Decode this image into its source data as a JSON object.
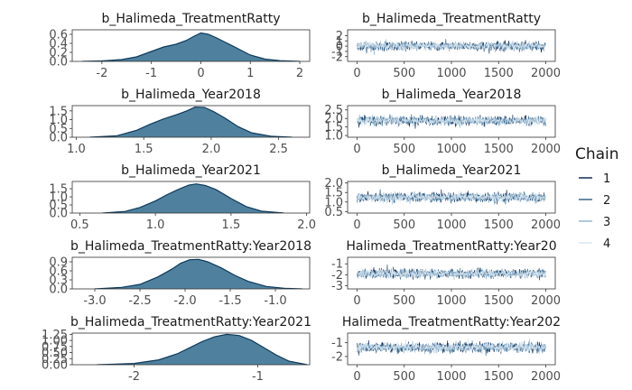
{
  "chart_data": [
    {
      "type": "area",
      "title": "b_Halimeda_TreatmentRatty",
      "xlim": [
        -2.6,
        2.2
      ],
      "ylim": [
        0,
        0.7
      ],
      "x_ticks": [
        -2,
        -1,
        0,
        1,
        2
      ],
      "x_tick_labels": [
        "-2",
        "-1",
        "0",
        "1",
        "2"
      ],
      "y_ticks": [
        0,
        0.2,
        0.4,
        0.6
      ],
      "y_tick_labels": [
        "0.0",
        "0.2",
        "0.4",
        "0.6"
      ],
      "density_x": [
        -2.4,
        -2.0,
        -1.6,
        -1.3,
        -1.0,
        -0.75,
        -0.5,
        -0.3,
        -0.15,
        0.0,
        0.15,
        0.3,
        0.5,
        0.7,
        1.0,
        1.3,
        1.6,
        2.0
      ],
      "density_y": [
        0.0,
        0.01,
        0.04,
        0.1,
        0.22,
        0.32,
        0.38,
        0.46,
        0.55,
        0.63,
        0.6,
        0.53,
        0.42,
        0.31,
        0.14,
        0.05,
        0.015,
        0.0
      ]
    },
    {
      "type": "line",
      "title": "b_Halimeda_TreatmentRatty",
      "xlim": [
        -100,
        2100
      ],
      "ylim": [
        -2.9,
        3.1
      ],
      "x_ticks": [
        0,
        500,
        1000,
        1500,
        2000
      ],
      "x_tick_labels": [
        "0",
        "500",
        "1000",
        "1500",
        "2000"
      ],
      "y_ticks": [
        -2,
        -1,
        0,
        1,
        2
      ],
      "y_tick_labels": [
        "-2",
        "-1",
        "0",
        "1",
        "2"
      ],
      "iterations": 2000,
      "trace_center": 0,
      "trace_spread": 0.75,
      "series": [
        "1",
        "2",
        "3",
        "4"
      ]
    },
    {
      "type": "area",
      "title": "b_Halimeda_Year2018",
      "xlim": [
        0.97,
        2.73
      ],
      "ylim": [
        0,
        1.8
      ],
      "x_ticks": [
        1.0,
        1.5,
        2.0,
        2.5
      ],
      "x_tick_labels": [
        "1.0",
        "1.5",
        "2.0",
        "2.5"
      ],
      "y_ticks": [
        0,
        0.5,
        1.0,
        1.5
      ],
      "y_tick_labels": [
        "0.0",
        "0.5",
        "1.0",
        "1.5"
      ],
      "density_x": [
        1.1,
        1.3,
        1.45,
        1.55,
        1.65,
        1.75,
        1.82,
        1.88,
        1.95,
        2.02,
        2.1,
        2.2,
        2.3,
        2.45,
        2.6
      ],
      "density_y": [
        0.0,
        0.08,
        0.4,
        0.75,
        1.05,
        1.3,
        1.5,
        1.72,
        1.7,
        1.45,
        1.1,
        0.6,
        0.25,
        0.05,
        0.0
      ]
    },
    {
      "type": "line",
      "title": "b_Halimeda_Year2018",
      "xlim": [
        -100,
        2100
      ],
      "ylim": [
        0.9,
        2.75
      ],
      "x_ticks": [
        0,
        500,
        1000,
        1500,
        2000
      ],
      "x_tick_labels": [
        "0",
        "500",
        "1000",
        "1500",
        "2000"
      ],
      "y_ticks": [
        1.0,
        1.5,
        2.0,
        2.5
      ],
      "y_tick_labels": [
        "1.0",
        "1.5",
        "2.0",
        "2.5"
      ],
      "iterations": 2000,
      "trace_center": 1.87,
      "trace_spread": 0.23,
      "series": [
        "1",
        "2",
        "3",
        "4"
      ]
    },
    {
      "type": "area",
      "title": "b_Halimeda_Year2021",
      "xlim": [
        0.45,
        2.02
      ],
      "ylim": [
        0,
        1.95
      ],
      "x_ticks": [
        0.5,
        1.0,
        1.5,
        2.0
      ],
      "x_tick_labels": [
        "0.5",
        "1.0",
        "1.5",
        "2.0"
      ],
      "y_ticks": [
        0,
        0.5,
        1.0,
        1.5
      ],
      "y_tick_labels": [
        "0.0",
        "0.5",
        "1.0",
        "1.5"
      ],
      "density_x": [
        0.65,
        0.8,
        0.9,
        1.0,
        1.08,
        1.15,
        1.22,
        1.27,
        1.33,
        1.4,
        1.5,
        1.6,
        1.7,
        1.85
      ],
      "density_y": [
        0.0,
        0.1,
        0.35,
        0.75,
        1.15,
        1.45,
        1.72,
        1.8,
        1.7,
        1.45,
        0.9,
        0.4,
        0.12,
        0.0
      ]
    },
    {
      "type": "line",
      "title": "b_Halimeda_Year2021",
      "xlim": [
        -100,
        2100
      ],
      "ylim": [
        0.42,
        2.08
      ],
      "x_ticks": [
        0,
        500,
        1000,
        1500,
        2000
      ],
      "x_tick_labels": [
        "0",
        "500",
        "1000",
        "1500",
        "2000"
      ],
      "y_ticks": [
        0.5,
        1.0,
        1.5,
        2.0
      ],
      "y_tick_labels": [
        "0.5",
        "1.0",
        "1.5",
        "2.0"
      ],
      "iterations": 2000,
      "trace_center": 1.24,
      "trace_spread": 0.22,
      "series": [
        "1",
        "2",
        "3",
        "4"
      ]
    },
    {
      "type": "area",
      "title": "b_Halimeda_TreatmentRatty:Year2018",
      "xlim": [
        -3.25,
        -0.62
      ],
      "ylim": [
        0,
        1.05
      ],
      "x_ticks": [
        -3.0,
        -2.5,
        -2.0,
        -1.5,
        -1.0
      ],
      "x_tick_labels": [
        "-3.0",
        "-2.5",
        "-2.0",
        "-1.5",
        "-1.0"
      ],
      "y_ticks": [
        0,
        0.3,
        0.6,
        0.9
      ],
      "y_tick_labels": [
        "0.0",
        "0.3",
        "0.6",
        "0.9"
      ],
      "density_x": [
        -3.0,
        -2.7,
        -2.5,
        -2.3,
        -2.15,
        -2.05,
        -1.95,
        -1.85,
        -1.75,
        -1.6,
        -1.45,
        -1.3,
        -1.1,
        -0.9,
        -0.7
      ],
      "density_y": [
        0.0,
        0.05,
        0.15,
        0.4,
        0.65,
        0.85,
        0.97,
        0.98,
        0.9,
        0.7,
        0.45,
        0.25,
        0.08,
        0.02,
        0.0
      ]
    },
    {
      "type": "line",
      "title": "Halimeda_TreatmentRatty:Year20",
      "xlim": [
        -100,
        2100
      ],
      "ylim": [
        -3.3,
        -0.4
      ],
      "x_ticks": [
        0,
        500,
        1000,
        1500,
        2000
      ],
      "x_tick_labels": [
        "0",
        "500",
        "1000",
        "1500",
        "2000"
      ],
      "y_ticks": [
        -3,
        -2,
        -1
      ],
      "y_tick_labels": [
        "-3",
        "-2",
        "-1"
      ],
      "iterations": 2000,
      "trace_center": -1.9,
      "trace_spread": 0.36,
      "series": [
        "1",
        "2",
        "3",
        "4"
      ]
    },
    {
      "type": "area",
      "title": "b_Halimeda_TreatmentRatty:Year2021",
      "xlim": [
        -2.5,
        -0.58
      ],
      "ylim": [
        0,
        1.3
      ],
      "x_ticks": [
        -2,
        -1
      ],
      "x_tick_labels": [
        "-2",
        "-1"
      ],
      "y_ticks": [
        0,
        0.25,
        0.5,
        0.75,
        1.0,
        1.25
      ],
      "y_tick_labels": [
        "0.00",
        "0.25",
        "0.50",
        "0.75",
        "1.00",
        "1.25"
      ],
      "density_x": [
        -2.3,
        -2.0,
        -1.8,
        -1.65,
        -1.55,
        -1.45,
        -1.35,
        -1.25,
        -1.15,
        -1.05,
        -0.95,
        -0.85,
        -0.75,
        -0.6
      ],
      "density_y": [
        0.0,
        0.05,
        0.2,
        0.45,
        0.7,
        0.95,
        1.15,
        1.25,
        1.2,
        1.0,
        0.7,
        0.4,
        0.15,
        0.0
      ]
    },
    {
      "type": "line",
      "title": "Halimeda_TreatmentRatty:Year202",
      "xlim": [
        -100,
        2100
      ],
      "ylim": [
        -2.6,
        -0.3
      ],
      "x_ticks": [
        0,
        500,
        1000,
        1500,
        2000
      ],
      "x_tick_labels": [
        "0",
        "500",
        "1000",
        "1500",
        "2000"
      ],
      "y_ticks": [
        -2,
        -1
      ],
      "y_tick_labels": [
        "-2",
        "-1"
      ],
      "iterations": 2000,
      "trace_center": -1.35,
      "trace_spread": 0.32,
      "series": [
        "1",
        "2",
        "3",
        "4"
      ]
    }
  ],
  "legend": {
    "title": "Chain",
    "items": [
      {
        "label": "1",
        "color": "#011f4b"
      },
      {
        "label": "2",
        "color": "#2d5b7e"
      },
      {
        "label": "3",
        "color": "#8fb4d0"
      },
      {
        "label": "4",
        "color": "#d6e5f0"
      }
    ]
  },
  "colors": {
    "density_fill": "#4f819e",
    "density_line": "#0d3a5c",
    "panel_border": "#333333"
  }
}
